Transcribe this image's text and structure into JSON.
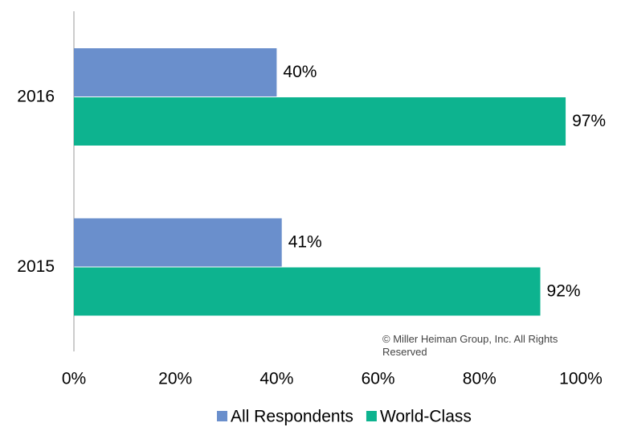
{
  "chart_data": {
    "type": "bar",
    "orientation": "horizontal",
    "categories": [
      "2016",
      "2015"
    ],
    "series": [
      {
        "name": "All Respondents",
        "color": "#6a8fcc",
        "values": [
          40,
          41
        ],
        "value_labels": [
          "40%",
          "41%"
        ]
      },
      {
        "name": "World-Class",
        "color": "#0db38f",
        "values": [
          97,
          92
        ],
        "value_labels": [
          "97%",
          "92%"
        ]
      }
    ],
    "xlim": [
      0,
      100
    ],
    "xticks": [
      {
        "value": 0,
        "label": "0%"
      },
      {
        "value": 20,
        "label": "20%"
      },
      {
        "value": 40,
        "label": "40%"
      },
      {
        "value": 60,
        "label": "60%"
      },
      {
        "value": 80,
        "label": "80%"
      },
      {
        "value": 100,
        "label": "100%"
      }
    ],
    "grid": false,
    "legend": "bottom",
    "annotation": "© Miller Heiman Group, Inc. All Rights Reserved"
  }
}
